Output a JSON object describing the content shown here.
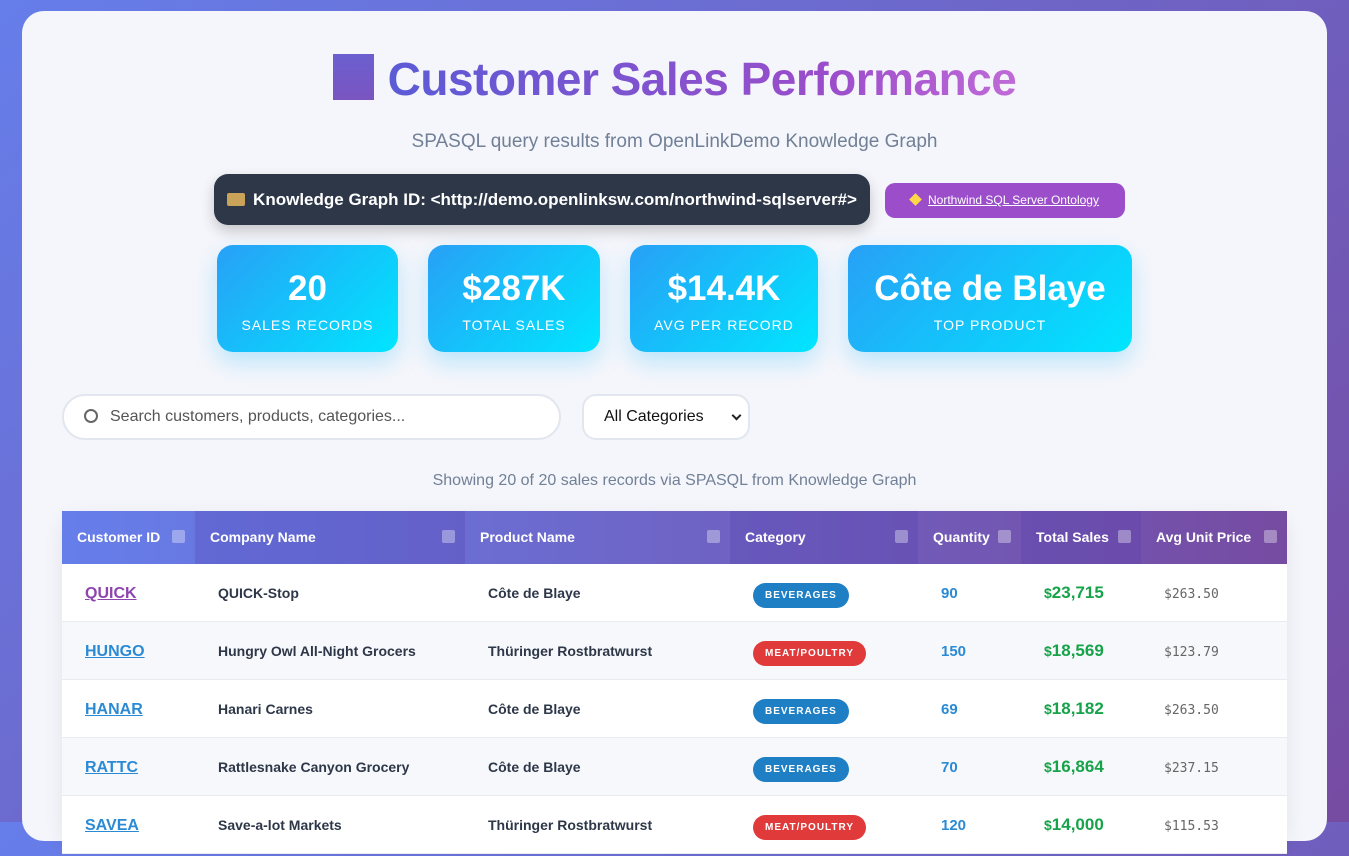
{
  "header": {
    "title": "Customer Sales Performance",
    "subtitle": "SPASQL query results from OpenLinkDemo Knowledge Graph",
    "graph_id": "Knowledge Graph ID: <http://demo.openlinksw.com/northwind-sqlserver#>",
    "ontology_link": "Northwind SQL Server Ontology"
  },
  "stats": [
    {
      "value": "20",
      "label": "SALES RECORDS"
    },
    {
      "value": "$287K",
      "label": "TOTAL SALES"
    },
    {
      "value": "$14.4K",
      "label": "AVG PER RECORD"
    },
    {
      "value": "Côte de Blaye",
      "label": "TOP PRODUCT"
    }
  ],
  "filters": {
    "search_placeholder": "Search customers, products, categories...",
    "category_select": "All Categories"
  },
  "summary": "Showing 20 of 20 sales records via SPASQL from Knowledge Graph",
  "table": {
    "columns": [
      "Customer ID",
      "Company Name",
      "Product Name",
      "Category",
      "Quantity",
      "Total Sales",
      "Avg Unit Price"
    ],
    "currency": "$",
    "rows": [
      [
        "QUICK",
        "QUICK-Stop",
        "Côte de Blaye",
        "BEVERAGES",
        "90",
        "23,715",
        "$263.50"
      ],
      [
        "HUNGO",
        "Hungry Owl All-Night Grocers",
        "Thüringer Rostbratwurst",
        "MEAT/POULTRY",
        "150",
        "18,569",
        "$123.79"
      ],
      [
        "HANAR",
        "Hanari Carnes",
        "Côte de Blaye",
        "BEVERAGES",
        "69",
        "18,182",
        "$263.50"
      ],
      [
        "RATTC",
        "Rattlesnake Canyon Grocery",
        "Côte de Blaye",
        "BEVERAGES",
        "70",
        "16,864",
        "$237.15"
      ],
      [
        "SAVEA",
        "Save-a-lot Markets",
        "Thüringer Rostbratwurst",
        "MEAT/POULTRY",
        "120",
        "14,000",
        "$115.53"
      ]
    ],
    "category_colors": [
      "#1f7fc4",
      "#e03a3a",
      "#1f7fc4",
      "#1f7fc4",
      "#e03a3a"
    ],
    "visited_rows": [
      0
    ]
  }
}
